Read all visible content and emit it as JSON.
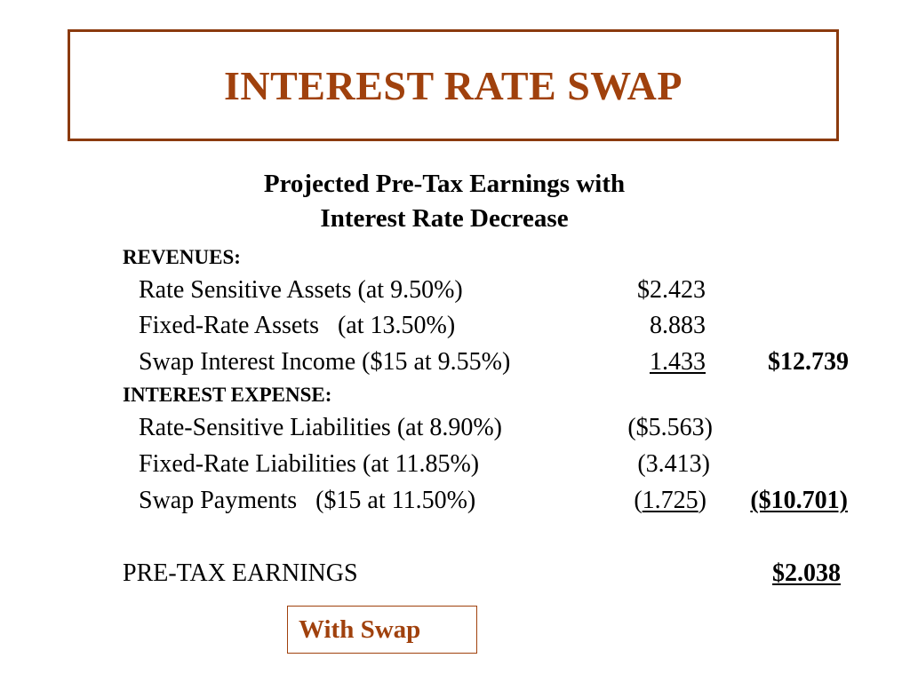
{
  "title": "INTEREST RATE SWAP",
  "subtitle": [
    "Projected Pre-Tax Earnings with",
    "Interest Rate Decrease"
  ],
  "revenues": {
    "heading": "REVENUES:",
    "rows": [
      {
        "label": "Rate Sensitive Assets (at 9.50%)",
        "value": "$2.423"
      },
      {
        "label": "Fixed-Rate Assets   (at 13.50%)",
        "value": "8.883"
      },
      {
        "label": "Swap Interest Income ($15 at 9.55%)",
        "value": "1.433",
        "total": "$12.739"
      }
    ]
  },
  "expense": {
    "heading": "INTEREST EXPENSE:",
    "rows": [
      {
        "label": "Rate-Sensitive Liabilities (at 8.90%)",
        "value": "($5.563)"
      },
      {
        "label": "Fixed-Rate Liabilities (at 11.85%)",
        "value": "(3.413)"
      },
      {
        "label": "Swap Payments   ($15 at 11.50%)",
        "value_open": "(",
        "value_inner": "1.725",
        "value_close": ")",
        "total": "($10.701)"
      }
    ]
  },
  "earnings": {
    "label": "PRE-TAX EARNINGS",
    "value": "$2.038"
  },
  "badge": "With Swap",
  "colors": {
    "accent": "#A0410D",
    "border": "#8B3A0E",
    "text": "#000000",
    "background": "#ffffff"
  }
}
